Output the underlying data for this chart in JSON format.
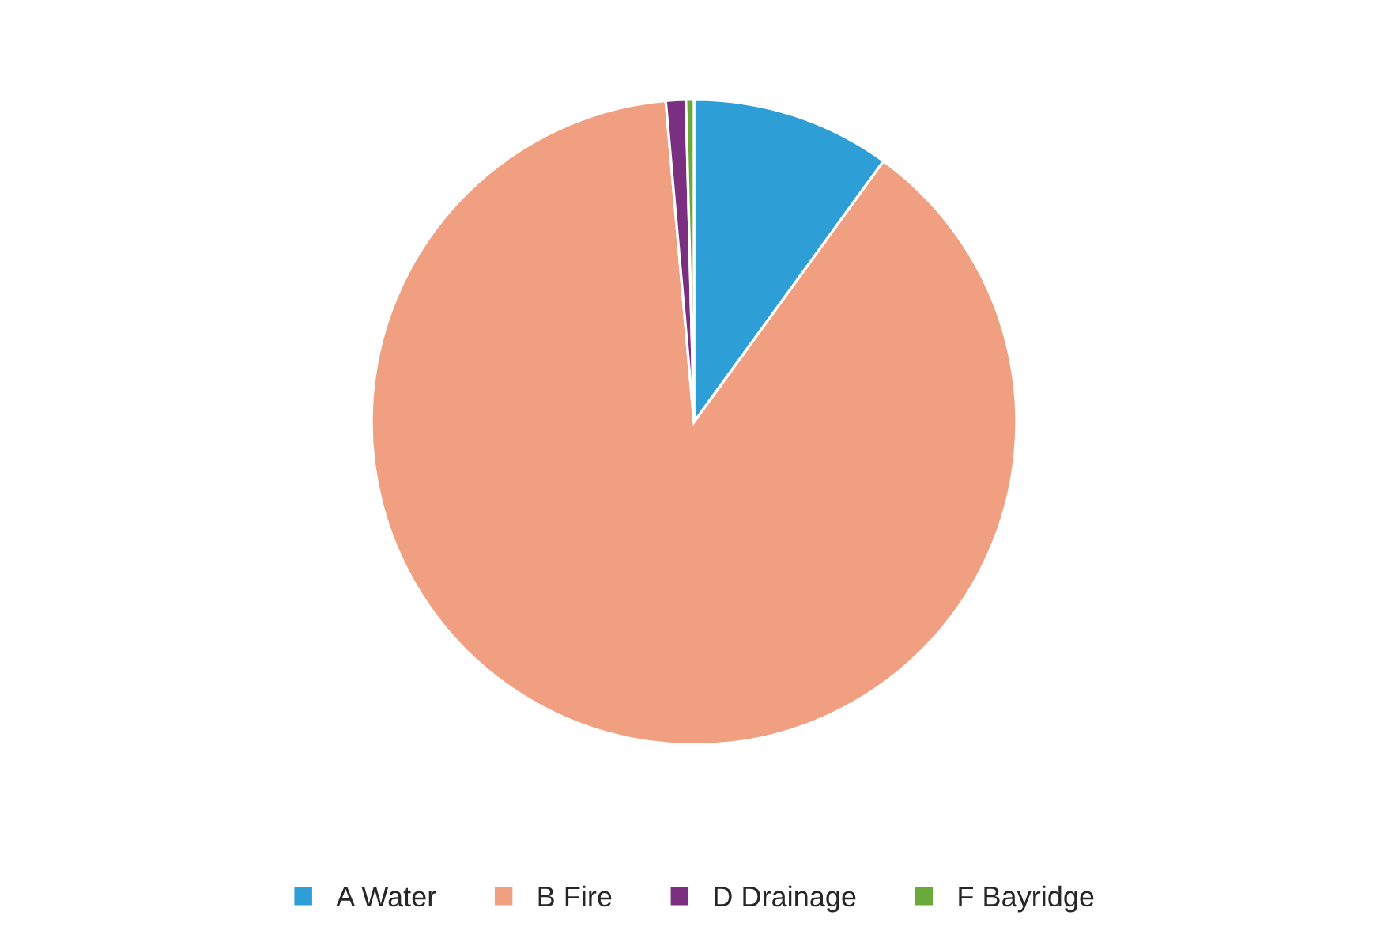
{
  "chart_data": {
    "type": "pie",
    "categories": [
      "A Water",
      "B Fire",
      "D Drainage",
      "F Bayridge"
    ],
    "values": [
      10,
      88.6,
      1.0,
      0.4
    ],
    "colors": [
      "#2e9fd6",
      "#f0a080",
      "#7a2f80",
      "#6aaa3a"
    ],
    "legend": "bottom"
  }
}
